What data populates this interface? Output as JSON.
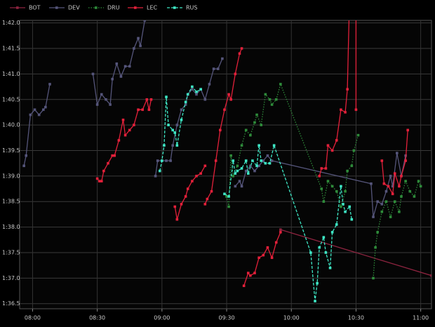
{
  "chart_data": {
    "type": "line",
    "xlim": [
      "07:54",
      "11:05"
    ],
    "xticks": [
      "08:00",
      "08:30",
      "09:00",
      "09:30",
      "10:00",
      "10:30",
      "11:00"
    ],
    "ylim": [
      96.4,
      102.05
    ],
    "yticks": [
      {
        "value": 96.5,
        "label": "1:36.5"
      },
      {
        "value": 97.0,
        "label": "1:37.0"
      },
      {
        "value": 97.5,
        "label": "1:37.5"
      },
      {
        "value": 98.0,
        "label": "1:38.0"
      },
      {
        "value": 98.5,
        "label": "1:38.5"
      },
      {
        "value": 99.0,
        "label": "1:39.0"
      },
      {
        "value": 99.5,
        "label": "1:39.5"
      },
      {
        "value": 100.0,
        "label": "1:40.0"
      },
      {
        "value": 100.5,
        "label": "1:40.5"
      },
      {
        "value": 101.0,
        "label": "1:41.0"
      },
      {
        "value": 101.5,
        "label": "1:41.5"
      },
      {
        "value": 102.0,
        "label": "1:42.0"
      }
    ],
    "grid": true,
    "legend": "top-left",
    "series": [
      {
        "name": "BOT",
        "color": "#8e2440",
        "dash": "solid",
        "x": [
          "09:55",
          "11:05"
        ],
        "values": [
          97.95,
          97.05
        ]
      },
      {
        "name": "DEV",
        "color": "#55557a",
        "dash": "solid",
        "x": [
          "07:56",
          "07:57",
          "07:59",
          "08:01",
          "08:03",
          "08:05",
          "08:06",
          "08:08",
          null,
          "08:28",
          "08:30",
          "08:32",
          "08:34",
          "08:36",
          "08:37",
          "08:39",
          "08:41",
          "08:43",
          "08:45",
          "08:47",
          "08:49",
          "08:50",
          "08:52",
          null,
          "08:57",
          "08:58",
          "09:00",
          "09:02",
          "09:04",
          "09:05",
          "09:07",
          "09:09",
          "09:11",
          "09:12",
          "09:14",
          "09:16",
          "09:18",
          "09:20",
          "09:22",
          "09:24",
          "09:26",
          "09:28",
          null,
          "09:34",
          "09:36",
          "09:37",
          "09:39",
          "09:41",
          "09:43",
          "09:45",
          "09:47",
          "09:49",
          "09:51",
          "10:37",
          "10:38",
          "10:40",
          "10:42",
          "10:44",
          "10:46",
          "10:47",
          "10:49",
          "10:51",
          "10:53"
        ],
        "values": [
          99.2,
          99.4,
          100.2,
          100.3,
          100.2,
          100.3,
          100.35,
          100.8,
          null,
          101.0,
          100.4,
          100.6,
          100.5,
          100.4,
          100.9,
          101.2,
          100.95,
          101.15,
          101.15,
          101.5,
          101.7,
          101.55,
          102.05,
          null,
          99.0,
          99.3,
          99.3,
          99.3,
          99.3,
          99.6,
          100.0,
          100.3,
          100.4,
          100.6,
          100.7,
          100.6,
          100.7,
          100.5,
          100.8,
          101.1,
          101.1,
          101.3,
          null,
          98.8,
          98.9,
          98.8,
          99.1,
          99.2,
          99.1,
          99.2,
          99.3,
          99.4,
          99.3,
          98.85,
          98.2,
          98.5,
          98.45,
          98.7,
          99.0,
          98.8,
          99.45,
          99.0,
          99.4
        ]
      },
      {
        "name": "DRU",
        "color": "#2e8b3a",
        "dash": "dotted",
        "x": [
          "09:30",
          "09:31",
          "09:32",
          "09:33",
          "09:35",
          "09:37",
          "09:39",
          "09:41",
          "09:43",
          "09:44",
          "09:46",
          "09:48",
          "09:50",
          "09:51",
          "09:53",
          "09:55",
          "10:14",
          "10:15",
          "10:17",
          "10:19",
          "10:21",
          "10:23",
          "10:25",
          "10:26",
          "10:28",
          "10:29",
          "10:31",
          null,
          "10:38",
          "10:39",
          "10:40",
          "10:42",
          "10:44",
          "10:46",
          "10:48",
          "10:50",
          "10:51",
          "10:53",
          "10:55",
          "10:57",
          "10:59",
          "11:00"
        ],
        "values": [
          98.6,
          98.4,
          99.4,
          99.0,
          99.2,
          99.6,
          99.9,
          99.8,
          100.05,
          100.2,
          100.0,
          100.6,
          100.5,
          100.4,
          100.5,
          100.8,
          98.75,
          98.5,
          98.9,
          98.8,
          98.7,
          98.4,
          98.7,
          99.1,
          99.2,
          99.5,
          99.8,
          null,
          97.0,
          97.6,
          97.9,
          98.3,
          98.5,
          98.2,
          98.5,
          98.3,
          98.6,
          98.9,
          98.7,
          98.6,
          98.9,
          98.8
        ]
      },
      {
        "name": "LEC",
        "color": "#e3203a",
        "dash": "solid",
        "x": [
          "08:30",
          "08:31",
          "08:32",
          "08:33",
          "08:35",
          "08:37",
          "08:38",
          "08:40",
          "08:42",
          "08:43",
          "08:45",
          "08:47",
          "08:49",
          "08:51",
          "08:53",
          "08:54",
          "08:55",
          null,
          "09:06",
          "09:07",
          "09:09",
          "09:11",
          "09:12",
          "09:14",
          "09:16",
          "09:18",
          "09:20",
          null,
          "09:20",
          "09:21",
          "09:23",
          "09:25",
          "09:27",
          "09:29",
          "09:31",
          "09:32",
          "09:34",
          "09:36",
          "09:37",
          null,
          "09:38",
          "09:40",
          "09:41",
          "09:43",
          "09:45",
          "09:47",
          "09:49",
          "09:51",
          "09:53",
          "09:55",
          null,
          "10:13",
          "10:14",
          "10:16",
          "10:17",
          "10:19",
          "10:21",
          "10:23",
          "10:25",
          "10:26",
          "10:27",
          "10:30",
          "10:30",
          null,
          "10:42",
          "10:43",
          "10:45",
          "10:47",
          "10:48",
          "10:50",
          "10:51",
          "10:53",
          "10:54"
        ],
        "values": [
          98.95,
          98.9,
          98.9,
          99.1,
          99.25,
          99.4,
          99.4,
          99.7,
          100.1,
          99.8,
          99.9,
          100.0,
          100.3,
          100.3,
          100.5,
          100.3,
          100.5,
          null,
          98.4,
          98.15,
          98.45,
          98.6,
          98.75,
          98.9,
          99.0,
          99.05,
          99.2,
          null,
          98.45,
          98.55,
          98.7,
          99.3,
          99.9,
          100.3,
          100.6,
          100.5,
          101.0,
          101.4,
          101.5,
          null,
          96.85,
          97.1,
          97.05,
          97.1,
          97.4,
          97.45,
          97.6,
          97.4,
          97.7,
          97.9,
          null,
          99.0,
          99.15,
          99.15,
          99.6,
          99.5,
          99.7,
          100.3,
          100.25,
          100.7,
          102.5,
          102.5,
          100.3,
          null,
          99.3,
          98.85,
          98.8,
          98.65,
          99.05,
          98.8,
          99.0,
          99.3,
          99.9
        ]
      },
      {
        "name": "RUS",
        "color": "#3ee6c4",
        "dash": "dashed",
        "x": [
          "08:59",
          "09:00",
          "09:01",
          "09:02",
          "09:03",
          "09:05",
          "09:06",
          "09:07",
          "09:09",
          "09:11",
          "09:12",
          "09:14",
          "09:16",
          "09:18",
          null,
          "09:29",
          "09:31",
          "09:33",
          "09:34",
          "09:35",
          "09:37",
          "09:39",
          "09:40",
          "09:42",
          "09:44",
          "09:45",
          "09:46",
          "09:48",
          "09:50",
          "09:52",
          "10:09",
          "10:11",
          "10:12",
          "10:13",
          "10:15",
          "10:16",
          "10:18",
          "10:19",
          "10:21",
          "10:23",
          "10:24",
          "10:25",
          "10:27",
          "10:28"
        ],
        "values": [
          99.1,
          99.3,
          99.6,
          100.55,
          100.0,
          99.9,
          99.85,
          99.6,
          100.1,
          100.45,
          100.6,
          100.75,
          100.65,
          100.7,
          null,
          98.65,
          98.6,
          99.3,
          99.05,
          99.1,
          99.15,
          99.3,
          99.05,
          99.3,
          99.2,
          99.6,
          99.3,
          99.25,
          99.25,
          99.6,
          97.5,
          96.55,
          96.9,
          97.6,
          97.8,
          97.5,
          97.2,
          97.9,
          98.05,
          98.8,
          98.45,
          98.3,
          98.4,
          98.15
        ]
      }
    ]
  }
}
